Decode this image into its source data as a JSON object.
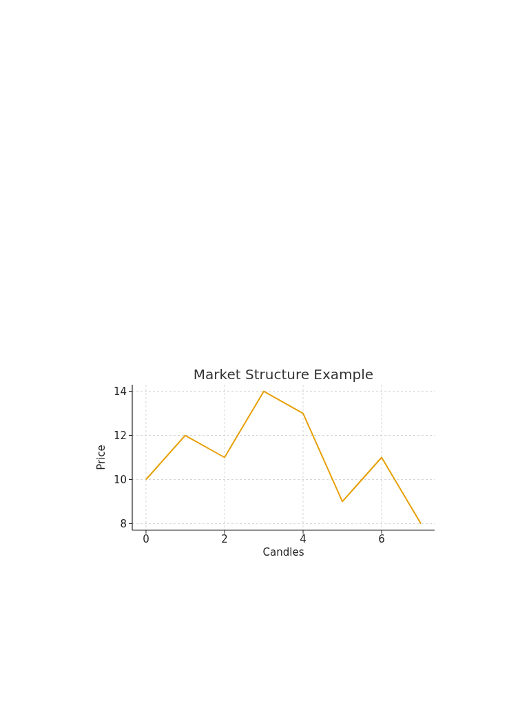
{
  "chart_data": {
    "type": "line",
    "title": "Market Structure Example",
    "xlabel": "Candles",
    "ylabel": "Price",
    "x": [
      0,
      1,
      2,
      3,
      4,
      5,
      6,
      7
    ],
    "series": [
      {
        "color": "#e69f00",
        "values": [
          10,
          12,
          11,
          14,
          13,
          9,
          11,
          8
        ]
      }
    ],
    "xlim": [
      -0.35,
      7.35
    ],
    "xticks": [
      0,
      2,
      4,
      6
    ],
    "ylim": [
      7.7,
      14.3
    ],
    "yticks": [
      8,
      10,
      12,
      14
    ],
    "grid": true,
    "marker": "none",
    "line_style": "solid"
  }
}
